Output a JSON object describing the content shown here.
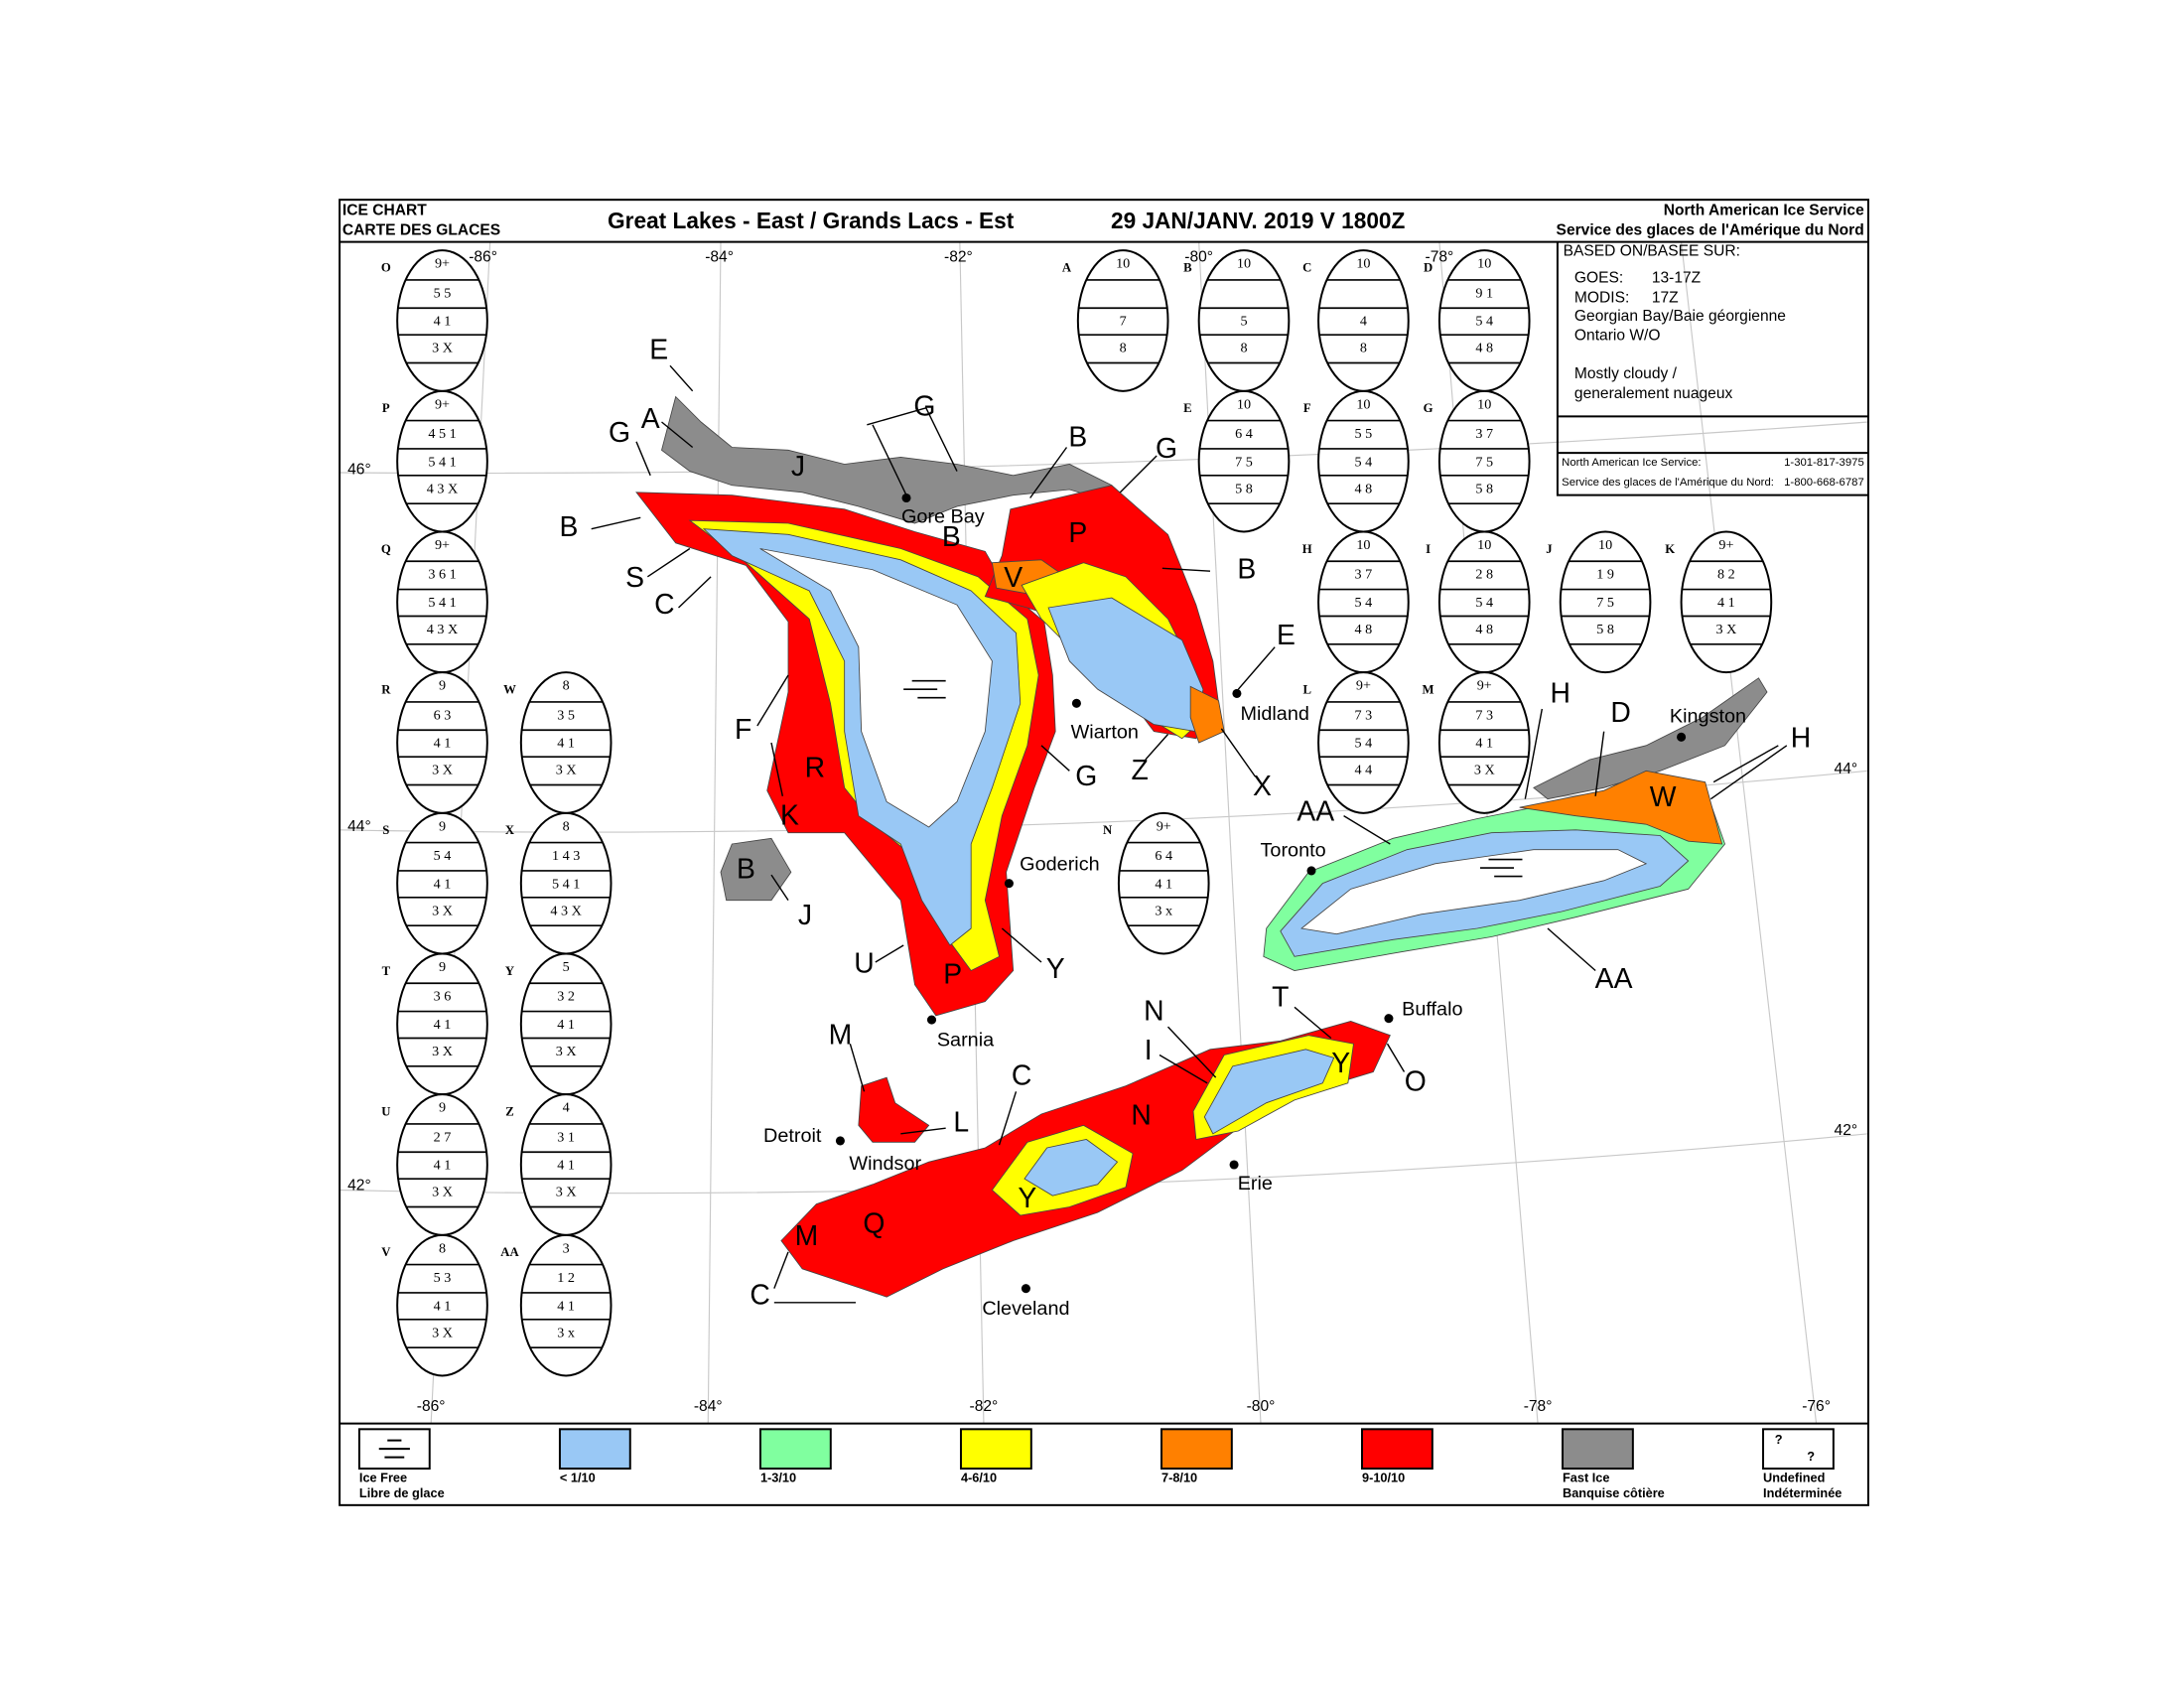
{
  "header": {
    "chart_label": [
      "ICE CHART",
      "CARTE DES GLACES"
    ],
    "title": "Great Lakes - East / Grands Lacs - Est",
    "date": "29 JAN/JANV. 2019 V 1800Z",
    "agency": [
      "North American Ice Service",
      "Service des glaces de l'Amérique du Nord"
    ]
  },
  "info": {
    "heading": "BASED ON/BASEE SUR:",
    "sources": [
      {
        "name": "GOES:",
        "time": "13-17Z"
      },
      {
        "name": "MODIS:",
        "time": "17Z"
      }
    ],
    "region_lines": [
      "Georgian Bay/Baie géorgienne",
      "Ontario W/O"
    ],
    "weather": [
      "Mostly cloudy /",
      "generalement nuageux"
    ],
    "contacts": [
      {
        "name": "North American Ice Service:",
        "phone": "1-301-817-3975"
      },
      {
        "name": "Service des glaces de l'Amérique du Nord:",
        "phone": "1-800-668-6787"
      }
    ]
  },
  "eggs": [
    {
      "id": "O",
      "total": "9+",
      "partial": "5 5",
      "stages": "4 1",
      "forms": "3 X"
    },
    {
      "id": "P",
      "total": "9+",
      "partial": "4 5 1",
      "stages": "5 4 1",
      "forms": "4 3 X"
    },
    {
      "id": "Q",
      "total": "9+",
      "partial": "3 6 1",
      "stages": "5 4 1",
      "forms": "4 3 X"
    },
    {
      "id": "R",
      "total": "9",
      "partial": "6 3",
      "stages": "4 1",
      "forms": "3 X"
    },
    {
      "id": "S",
      "total": "9",
      "partial": "5 4",
      "stages": "4 1",
      "forms": "3 X"
    },
    {
      "id": "T",
      "total": "9",
      "partial": "3 6",
      "stages": "4 1",
      "forms": "3 X"
    },
    {
      "id": "U",
      "total": "9",
      "partial": "2 7",
      "stages": "4 1",
      "forms": "3 X"
    },
    {
      "id": "V",
      "total": "8",
      "partial": "5 3",
      "stages": "4 1",
      "forms": "3 X"
    },
    {
      "id": "W",
      "total": "8",
      "partial": "3 5",
      "stages": "4 1",
      "forms": "3 X"
    },
    {
      "id": "X",
      "total": "8",
      "partial": "1 4 3",
      "stages": "5 4 1",
      "forms": "4 3 X"
    },
    {
      "id": "Y",
      "total": "5",
      "partial": "3 2",
      "stages": "4 1",
      "forms": "3 X"
    },
    {
      "id": "Z",
      "total": "4",
      "partial": "3 1",
      "stages": "4 1",
      "forms": "3 X"
    },
    {
      "id": "AA",
      "total": "3",
      "partial": "1 2",
      "stages": "4 1",
      "forms": "3 x"
    },
    {
      "id": "A",
      "total": "10",
      "stages": "7",
      "forms": "8"
    },
    {
      "id": "B",
      "total": "10",
      "stages": "5",
      "forms": "8"
    },
    {
      "id": "C",
      "total": "10",
      "stages": "4",
      "forms": "8"
    },
    {
      "id": "D",
      "total": "10",
      "partial": "9 1",
      "stages": "5 4",
      "forms": "4 8"
    },
    {
      "id": "E",
      "total": "10",
      "partial": "6 4",
      "stages": "7 5",
      "forms": "5 8"
    },
    {
      "id": "F",
      "total": "10",
      "partial": "5 5",
      "stages": "5 4",
      "forms": "4 8"
    },
    {
      "id": "G",
      "total": "10",
      "partial": "3 7",
      "stages": "7 5",
      "forms": "5 8"
    },
    {
      "id": "H",
      "total": "10",
      "partial": "3 7",
      "stages": "5 4",
      "forms": "4 8"
    },
    {
      "id": "I",
      "total": "10",
      "partial": "2 8",
      "stages": "5 4",
      "forms": "4 8"
    },
    {
      "id": "J",
      "total": "10",
      "partial": "1 9",
      "stages": "7 5",
      "forms": "5 8"
    },
    {
      "id": "K",
      "total": "9+",
      "partial": "8 2",
      "stages": "4 1",
      "forms": "3 X"
    },
    {
      "id": "L",
      "total": "9+",
      "partial": "7 3",
      "stages": "5 4",
      "forms": "4 4"
    },
    {
      "id": "M",
      "total": "9+",
      "partial": "7 3",
      "stages": "4 1",
      "forms": "3 X"
    },
    {
      "id": "N",
      "total": "9+",
      "partial": "6 4",
      "stages": "4 1",
      "forms": "3 x"
    }
  ],
  "graticule": {
    "top": [
      "-86°",
      "-84°",
      "-82°",
      "-80°",
      "-78°"
    ],
    "left": [
      "46°",
      "44°",
      "42°"
    ],
    "bottom": [
      "-86°",
      "-84°",
      "-82°",
      "-80°",
      "-78°",
      "-76°"
    ],
    "right": [
      "44°",
      "42°"
    ]
  },
  "region_labels": [
    "E",
    "A",
    "G",
    "J",
    "G",
    "B",
    "G",
    "B",
    "S",
    "C",
    "P",
    "B",
    "V",
    "B",
    "E",
    "F",
    "R",
    "K",
    "G",
    "Z",
    "X",
    "B",
    "J",
    "U",
    "P",
    "Y",
    "AA",
    "H",
    "D",
    "H",
    "W",
    "AA",
    "N",
    "T",
    "I",
    "Y",
    "O",
    "M",
    "C",
    "L",
    "N",
    "Y",
    "Q",
    "M",
    "C"
  ],
  "cities": [
    "Gore Bay",
    "Wiarton",
    "Midland",
    "Kingston",
    "Toronto",
    "Goderich",
    "Sarnia",
    "Buffalo",
    "Detroit",
    "Windsor",
    "Erie",
    "Cleveland"
  ],
  "legend": [
    {
      "label": [
        "Ice Free",
        "Libre de glace"
      ]
    },
    {
      "label": [
        "< 1/10"
      ]
    },
    {
      "label": [
        "1-3/10"
      ]
    },
    {
      "label": [
        "4-6/10"
      ]
    },
    {
      "label": [
        "7-8/10"
      ]
    },
    {
      "label": [
        "9-10/10"
      ]
    },
    {
      "label": [
        "Fast Ice",
        "Banquise côtière"
      ]
    },
    {
      "label": [
        "Undefined",
        "Indéterminée"
      ],
      "symbol": "?"
    }
  ]
}
